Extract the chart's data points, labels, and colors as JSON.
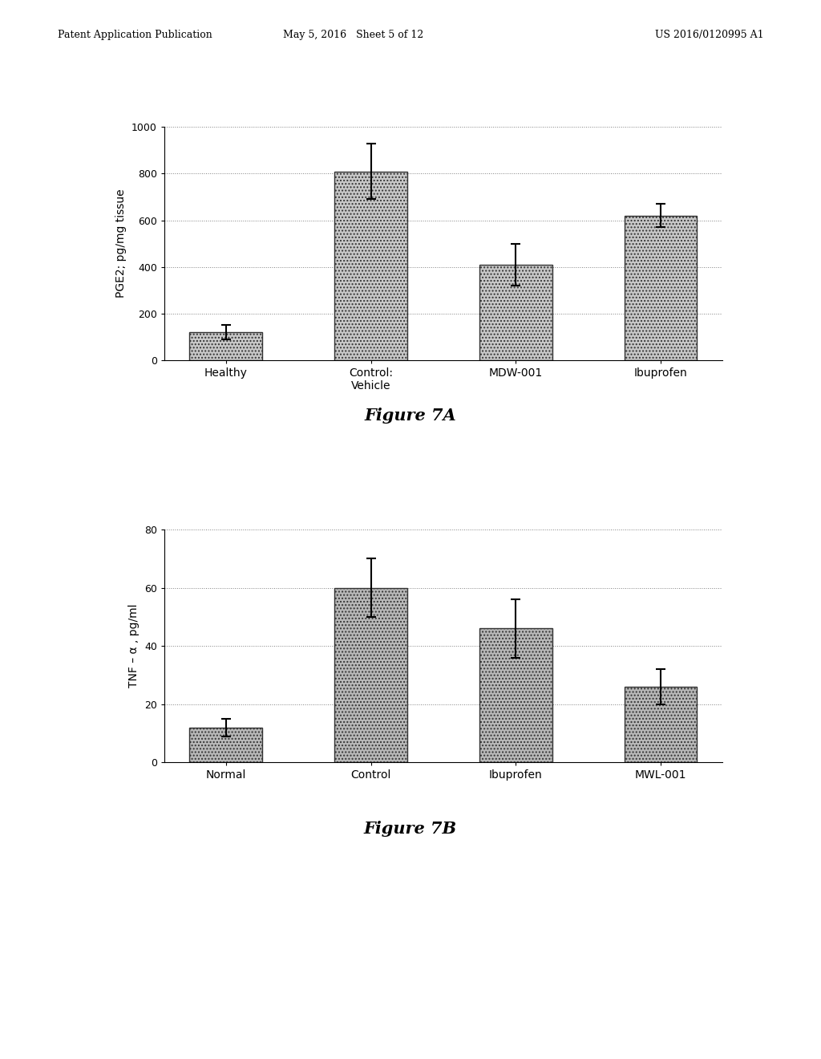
{
  "fig7a": {
    "categories": [
      "Healthy",
      "Control:\nVehicle",
      "MDW-001",
      "Ibuprofen"
    ],
    "values": [
      120,
      810,
      410,
      620
    ],
    "errors": [
      30,
      120,
      90,
      50
    ],
    "ylabel": "PGE2; pg/mg tissue",
    "ylim": [
      0,
      1000
    ],
    "yticks": [
      0,
      200,
      400,
      600,
      800,
      1000
    ],
    "figure_label": "Figure 7A",
    "bar_color": "#c8c8c8",
    "bar_hatch": "....",
    "bar_edge_color": "#333333"
  },
  "fig7b": {
    "categories": [
      "Normal",
      "Control",
      "Ibuprofen",
      "MWL-001"
    ],
    "values": [
      12,
      60,
      46,
      26
    ],
    "errors": [
      3,
      10,
      10,
      6
    ],
    "ylabel": "TNF – α , pg/ml",
    "ylim": [
      0,
      80
    ],
    "yticks": [
      0,
      20,
      40,
      60,
      80
    ],
    "figure_label": "Figure 7B",
    "bar_color": "#b8b8b8",
    "bar_hatch": "....",
    "bar_edge_color": "#333333"
  },
  "header_left": "Patent Application Publication",
  "header_center": "May 5, 2016   Sheet 5 of 12",
  "header_right": "US 2016/0120995 A1",
  "bg_color": "#ffffff",
  "text_color": "#000000"
}
